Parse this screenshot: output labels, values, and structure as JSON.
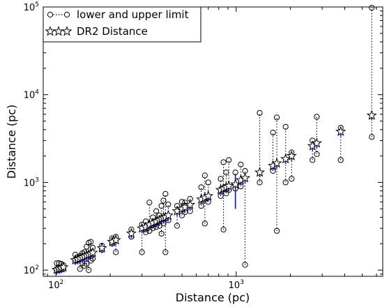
{
  "chart_data": {
    "type": "scatter",
    "xlabel": "Distance (pc)",
    "ylabel": "Distance (pc)",
    "x_scale": "log",
    "y_scale": "log",
    "xlim": [
      85,
      6500
    ],
    "ylim": [
      85,
      100000
    ],
    "x_ticks": [
      {
        "value": 100,
        "base": "10",
        "exp": "2"
      },
      {
        "value": 1000,
        "base": "10",
        "exp": "3"
      }
    ],
    "y_ticks": [
      {
        "value": 100,
        "base": "10",
        "exp": "2"
      },
      {
        "value": 1000,
        "base": "10",
        "exp": "3"
      },
      {
        "value": 10000,
        "base": "10",
        "exp": "4"
      },
      {
        "value": 100000,
        "base": "10",
        "exp": "5"
      }
    ],
    "legend": {
      "placement": "top-left",
      "entries": [
        "lower and upper limit",
        "DR2 Distance"
      ]
    },
    "colors": {
      "errorbar": "#1f22c9",
      "marker": "#000000",
      "connector": "#000000"
    },
    "points": [
      {
        "x": 101,
        "y": 101,
        "lo": 100,
        "hi": 120
      },
      {
        "x": 104,
        "y": 104,
        "lo": 100,
        "hi": 120
      },
      {
        "x": 107,
        "y": 105,
        "lo": 102,
        "hi": 118
      },
      {
        "x": 110,
        "y": 108,
        "lo": 103,
        "hi": 114
      },
      {
        "x": 128,
        "y": 130,
        "lo": 128,
        "hi": 150
      },
      {
        "x": 132,
        "y": 133,
        "lo": 130,
        "hi": 140
      },
      {
        "x": 136,
        "y": 136,
        "lo": 103,
        "hi": 145
      },
      {
        "x": 140,
        "y": 140,
        "lo": 120,
        "hi": 155
      },
      {
        "x": 144,
        "y": 143,
        "lo": 112,
        "hi": 160
      },
      {
        "x": 148,
        "y": 147,
        "lo": 118,
        "hi": 185
      },
      {
        "x": 152,
        "y": 150,
        "lo": 100,
        "hi": 205
      },
      {
        "x": 156,
        "y": 153,
        "lo": 128,
        "hi": 210
      },
      {
        "x": 160,
        "y": 158,
        "lo": 135,
        "hi": 180
      },
      {
        "x": 180,
        "y": 178,
        "lo": 170,
        "hi": 190
      },
      {
        "x": 205,
        "y": 210,
        "lo": 200,
        "hi": 230
      },
      {
        "x": 215,
        "y": 220,
        "lo": 160,
        "hi": 240
      },
      {
        "x": 262,
        "y": 262,
        "lo": 240,
        "hi": 290
      },
      {
        "x": 300,
        "y": 300,
        "lo": 160,
        "hi": 330
      },
      {
        "x": 315,
        "y": 310,
        "lo": 270,
        "hi": 360
      },
      {
        "x": 330,
        "y": 330,
        "lo": 280,
        "hi": 590
      },
      {
        "x": 345,
        "y": 345,
        "lo": 300,
        "hi": 400
      },
      {
        "x": 360,
        "y": 358,
        "lo": 310,
        "hi": 470
      },
      {
        "x": 375,
        "y": 372,
        "lo": 320,
        "hi": 420
      },
      {
        "x": 385,
        "y": 385,
        "lo": 260,
        "hi": 540
      },
      {
        "x": 395,
        "y": 395,
        "lo": 340,
        "hi": 620
      },
      {
        "x": 405,
        "y": 400,
        "lo": 160,
        "hi": 740
      },
      {
        "x": 420,
        "y": 420,
        "lo": 370,
        "hi": 560
      },
      {
        "x": 470,
        "y": 470,
        "lo": 320,
        "hi": 540
      },
      {
        "x": 500,
        "y": 500,
        "lo": 420,
        "hi": 600
      },
      {
        "x": 520,
        "y": 520,
        "lo": 460,
        "hi": 590
      },
      {
        "x": 555,
        "y": 555,
        "lo": 470,
        "hi": 650
      },
      {
        "x": 640,
        "y": 640,
        "lo": 540,
        "hi": 880
      },
      {
        "x": 670,
        "y": 670,
        "lo": 340,
        "hi": 1200
      },
      {
        "x": 700,
        "y": 700,
        "lo": 600,
        "hi": 1000
      },
      {
        "x": 820,
        "y": 820,
        "lo": 700,
        "hi": 1100
      },
      {
        "x": 850,
        "y": 850,
        "lo": 290,
        "hi": 1700
      },
      {
        "x": 880,
        "y": 880,
        "lo": 750,
        "hi": 1300
      },
      {
        "x": 910,
        "y": 910,
        "lo": 820,
        "hi": 1800
      },
      {
        "x": 990,
        "y": 950,
        "lo": 850,
        "hi": 1300,
        "err_lo": 500,
        "err_hi": 1250
      },
      {
        "x": 1060,
        "y": 1060,
        "lo": 900,
        "hi": 1600
      },
      {
        "x": 1120,
        "y": 1120,
        "lo": 115,
        "hi": 1350
      },
      {
        "x": 1350,
        "y": 1300,
        "lo": 1000,
        "hi": 6200
      },
      {
        "x": 1600,
        "y": 1550,
        "lo": 1350,
        "hi": 3700
      },
      {
        "x": 1680,
        "y": 1650,
        "lo": 280,
        "hi": 5500
      },
      {
        "x": 1880,
        "y": 1850,
        "lo": 1000,
        "hi": 4300
      },
      {
        "x": 2030,
        "y": 2000,
        "lo": 1100,
        "hi": 2200
      },
      {
        "x": 2650,
        "y": 2600,
        "lo": 1800,
        "hi": 3000
      },
      {
        "x": 2800,
        "y": 2800,
        "lo": 2100,
        "hi": 5600
      },
      {
        "x": 3800,
        "y": 3800,
        "lo": 1800,
        "hi": 4200
      },
      {
        "x": 5650,
        "y": 5800,
        "lo": 3300,
        "hi": 98000
      }
    ]
  }
}
